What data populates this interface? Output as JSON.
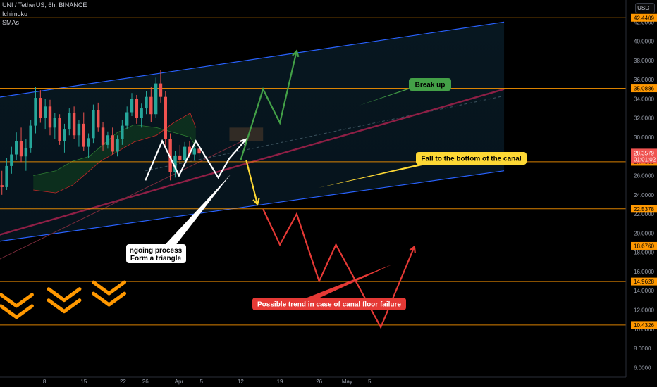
{
  "header": {
    "symbol_line": "UNI / TetherUS, 6h, BINANCE",
    "indicator_1": "Ichimoku",
    "indicator_2": "SMAs",
    "currency_button": "USDT"
  },
  "colors": {
    "background": "#000000",
    "channel_line": "#2962ff",
    "horizontal_level": "#ff9800",
    "trend_line": "#e91e63",
    "break_up": "#43a047",
    "fall": "#fdd835",
    "failure": "#e53935",
    "process": "#ffffff",
    "chevrons": "#ff9800",
    "current_price": "#ef5350"
  },
  "annotations": {
    "break_up": "Break up",
    "fall_to_bottom": "Fall to the bottom of the canal",
    "ongoing_process_line1": "ngoing process",
    "ongoing_process_line2": "Form a triangle",
    "possible_trend": "Possible trend in case of canal floor failure"
  },
  "chart_data": {
    "type": "candlestick",
    "title": "UNI / TetherUS, 6h, BINANCE",
    "y_axis": {
      "min": 5,
      "max": 44,
      "ticks": [
        "6.0000",
        "8.0000",
        "10.0000",
        "12.0000",
        "14.0000",
        "16.0000",
        "18.0000",
        "20.0000",
        "22.0000",
        "24.0000",
        "26.0000",
        "28.0000",
        "30.0000",
        "32.0000",
        "34.0000",
        "36.0000",
        "38.0000",
        "40.0000",
        "42.0000"
      ]
    },
    "x_axis": {
      "ticks": [
        "8",
        "15",
        "22",
        "26",
        "Apr",
        "5",
        "12",
        "19",
        "26",
        "May",
        "5"
      ]
    },
    "horizontal_levels": [
      "42.4409",
      "35.0886",
      "27.4393",
      "22.5378",
      "18.6760",
      "14.9628",
      "10.4326"
    ],
    "current_price": "28.3579",
    "countdown": "01:01:02",
    "channel": {
      "upper": [
        [
          -3,
          34.0
        ],
        [
          89,
          42.0
        ]
      ],
      "lower": [
        [
          -3,
          19.0
        ],
        [
          89,
          26.5
        ]
      ]
    },
    "red_trend_line": [
      [
        -3,
        19.5
      ],
      [
        89,
        35.0
      ]
    ],
    "paths": {
      "process_white": [
        [
          25,
          25.5
        ],
        [
          28,
          29.6
        ],
        [
          31,
          26.0
        ],
        [
          34,
          29.6
        ],
        [
          38,
          25.8
        ],
        [
          40,
          27.8
        ],
        [
          43,
          29.8
        ]
      ],
      "break_up_green": [
        [
          42,
          27.6
        ],
        [
          46,
          35.0
        ],
        [
          49,
          31.5
        ],
        [
          52,
          39.0
        ]
      ],
      "fall_yellow": [
        [
          43,
          27.6
        ],
        [
          45,
          23.0
        ]
      ],
      "failure_red": [
        [
          46,
          22.5
        ],
        [
          49,
          18.8
        ],
        [
          52,
          22.0
        ],
        [
          56,
          15.0
        ],
        [
          59,
          18.8
        ],
        [
          67,
          10.2
        ],
        [
          73,
          18.6
        ]
      ]
    },
    "candles": [
      {
        "o": 25.0,
        "h": 26.5,
        "l": 24.0,
        "c": 24.8
      },
      {
        "o": 24.8,
        "h": 27.8,
        "l": 24.5,
        "c": 27.0
      },
      {
        "o": 27.0,
        "h": 29.0,
        "l": 26.2,
        "c": 28.2
      },
      {
        "o": 28.2,
        "h": 30.5,
        "l": 27.6,
        "c": 29.6
      },
      {
        "o": 29.6,
        "h": 31.0,
        "l": 27.4,
        "c": 28.0
      },
      {
        "o": 28.0,
        "h": 29.8,
        "l": 26.5,
        "c": 28.9
      },
      {
        "o": 28.9,
        "h": 31.8,
        "l": 28.4,
        "c": 31.2
      },
      {
        "o": 31.2,
        "h": 35.2,
        "l": 30.4,
        "c": 34.1
      },
      {
        "o": 34.1,
        "h": 34.9,
        "l": 31.5,
        "c": 32.0
      },
      {
        "o": 32.0,
        "h": 34.0,
        "l": 30.8,
        "c": 33.2
      },
      {
        "o": 33.2,
        "h": 33.9,
        "l": 30.2,
        "c": 31.0
      },
      {
        "o": 31.0,
        "h": 32.5,
        "l": 29.8,
        "c": 32.0
      },
      {
        "o": 32.0,
        "h": 32.4,
        "l": 29.2,
        "c": 29.6
      },
      {
        "o": 29.6,
        "h": 31.4,
        "l": 28.4,
        "c": 30.8
      },
      {
        "o": 30.8,
        "h": 33.0,
        "l": 30.2,
        "c": 32.5
      },
      {
        "o": 32.5,
        "h": 33.2,
        "l": 29.8,
        "c": 30.2
      },
      {
        "o": 30.2,
        "h": 31.8,
        "l": 29.0,
        "c": 31.4
      },
      {
        "o": 31.4,
        "h": 32.6,
        "l": 28.6,
        "c": 29.0
      },
      {
        "o": 29.0,
        "h": 30.4,
        "l": 27.8,
        "c": 29.9
      },
      {
        "o": 29.9,
        "h": 33.4,
        "l": 29.4,
        "c": 32.8
      },
      {
        "o": 32.8,
        "h": 33.6,
        "l": 30.6,
        "c": 31.0
      },
      {
        "o": 31.0,
        "h": 31.6,
        "l": 28.6,
        "c": 29.2
      },
      {
        "o": 29.2,
        "h": 30.6,
        "l": 28.8,
        "c": 30.2
      },
      {
        "o": 30.2,
        "h": 31.0,
        "l": 28.2,
        "c": 28.5
      },
      {
        "o": 28.5,
        "h": 30.2,
        "l": 28.0,
        "c": 29.8
      },
      {
        "o": 29.8,
        "h": 31.8,
        "l": 29.2,
        "c": 31.2
      },
      {
        "o": 31.2,
        "h": 33.2,
        "l": 30.8,
        "c": 32.6
      },
      {
        "o": 32.6,
        "h": 34.6,
        "l": 32.2,
        "c": 34.0
      },
      {
        "o": 34.0,
        "h": 34.4,
        "l": 31.4,
        "c": 32.0
      },
      {
        "o": 32.0,
        "h": 33.5,
        "l": 31.0,
        "c": 33.0
      },
      {
        "o": 33.0,
        "h": 34.8,
        "l": 32.4,
        "c": 34.2
      },
      {
        "o": 34.2,
        "h": 35.2,
        "l": 31.6,
        "c": 32.4
      },
      {
        "o": 32.4,
        "h": 36.2,
        "l": 32.0,
        "c": 35.6
      },
      {
        "o": 35.6,
        "h": 37.0,
        "l": 33.6,
        "c": 34.2
      },
      {
        "o": 34.2,
        "h": 34.8,
        "l": 29.0,
        "c": 29.8
      },
      {
        "o": 29.8,
        "h": 30.4,
        "l": 25.5,
        "c": 26.4
      },
      {
        "o": 26.4,
        "h": 28.6,
        "l": 25.8,
        "c": 28.1
      },
      {
        "o": 28.1,
        "h": 29.2,
        "l": 27.2,
        "c": 27.6
      },
      {
        "o": 27.6,
        "h": 29.5,
        "l": 27.4,
        "c": 29.0
      },
      {
        "o": 29.0,
        "h": 29.6,
        "l": 27.8,
        "c": 28.2
      },
      {
        "o": 28.2,
        "h": 29.4,
        "l": 27.6,
        "c": 28.8
      },
      {
        "o": 28.8,
        "h": 29.2,
        "l": 27.9,
        "c": 28.3
      }
    ]
  }
}
